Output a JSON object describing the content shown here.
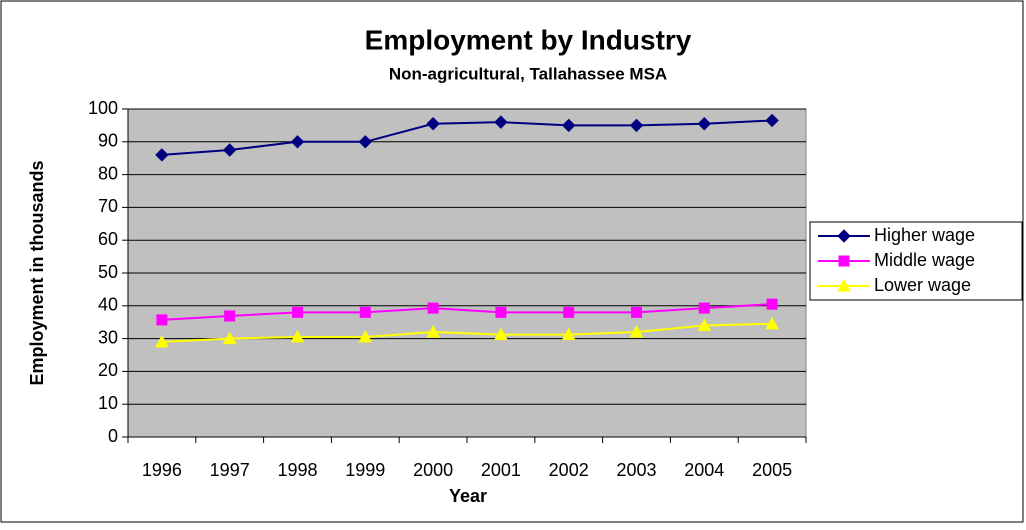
{
  "chart_data": {
    "type": "line",
    "title": "Employment by Industry",
    "subtitle": "Non-agricultural, Tallahassee MSA",
    "x_label": "Year",
    "y_label": "Employment in thousands",
    "categories": [
      "1996",
      "1997",
      "1998",
      "1999",
      "2000",
      "2001",
      "2002",
      "2003",
      "2004",
      "2005"
    ],
    "series": [
      {
        "name": "Higher wage",
        "color": "#000080",
        "marker": "diamond",
        "values": [
          86,
          87.5,
          90,
          90,
          95.5,
          96,
          95,
          95,
          95.5,
          96.5
        ]
      },
      {
        "name": "Middle wage",
        "color": "#ff00ff",
        "marker": "square",
        "values": [
          35.7,
          36.9,
          38,
          38,
          39.3,
          38,
          38,
          38,
          39.3,
          40.5
        ]
      },
      {
        "name": "Lower wage",
        "color": "#ffff00",
        "marker": "triangle",
        "values": [
          29,
          30,
          30.5,
          30.5,
          32,
          31.2,
          31.2,
          32,
          34,
          34.5
        ]
      }
    ],
    "ylim": [
      0,
      100
    ],
    "yticks": [
      0,
      10,
      20,
      30,
      40,
      50,
      60,
      70,
      80,
      90,
      100
    ],
    "grid": true,
    "legend": "right"
  }
}
